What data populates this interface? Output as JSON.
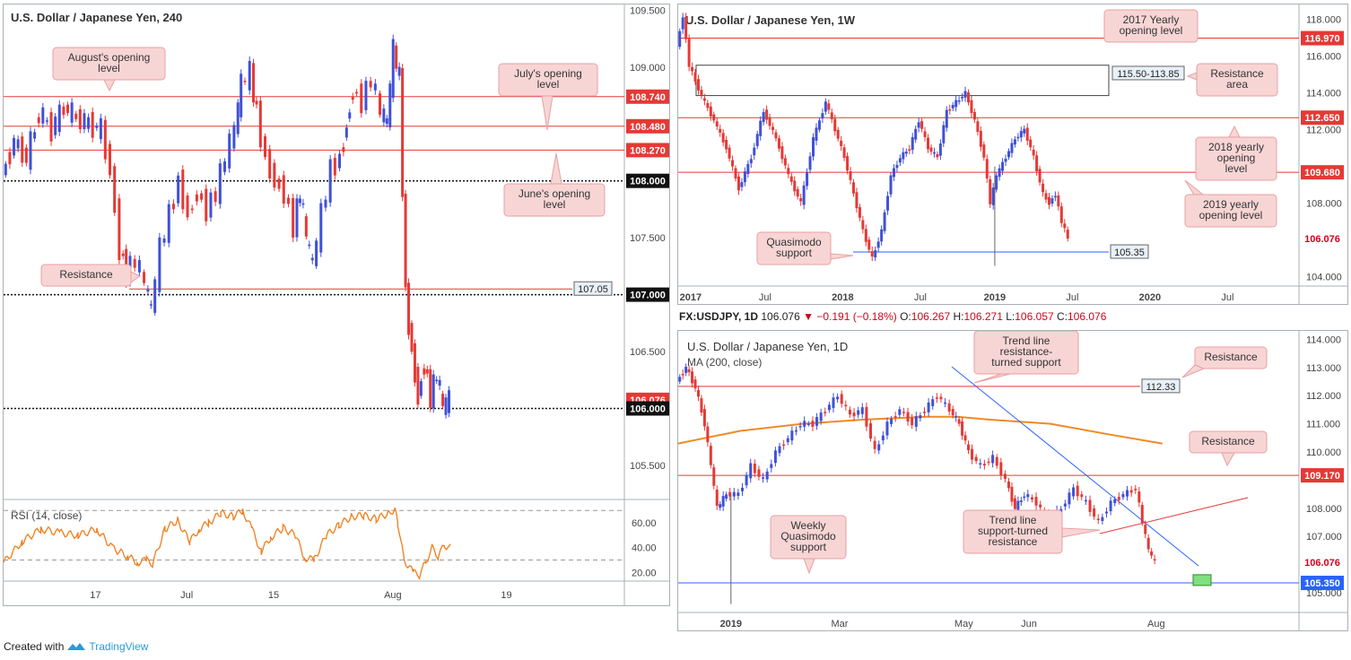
{
  "footer": {
    "created_with": "Created with",
    "brand": "TradingView"
  },
  "symbol_line": {
    "ticker": "FX:USDJPY, 1D",
    "last": "106.076",
    "change": "−0.191 (−0.18%)",
    "o_label": "O:",
    "o": "106.267",
    "h_label": "H:",
    "h": "106.271",
    "l_label": "L:",
    "l": "106.057",
    "c_label": "C:",
    "c": "106.076",
    "arrow": "▼"
  },
  "colors": {
    "resistance": "#e53935",
    "candle_up": "#3f51d6",
    "candle_down": "#e53935",
    "label_bg": "#f8d5d5",
    "label_border": "#e8a0a0",
    "blue_line": "#2962ff",
    "ma": "#f08a24",
    "rsi": "#f07d1a"
  },
  "chart_data": [
    {
      "type": "line",
      "title": "U.S. Dollar / Japanese Yen, 240",
      "ylim": [
        105.2,
        109.55
      ],
      "y_ticks": [
        "109.500",
        "109.000",
        "108.500",
        "108.000",
        "107.500",
        "107.000",
        "106.500",
        "106.000",
        "105.500"
      ],
      "y_tick_values": [
        109.5,
        109.0,
        108.5,
        108.0,
        107.5,
        107.0,
        106.5,
        106.0,
        105.5
      ],
      "x_ticks": [
        "17",
        "Jul",
        "15",
        "Aug",
        "19"
      ],
      "x_tick_frac": [
        0.148,
        0.295,
        0.435,
        0.627,
        0.81
      ],
      "price_tags": [
        {
          "value": 108.74,
          "label": "108.740",
          "style": "red"
        },
        {
          "value": 108.48,
          "label": "108.480",
          "style": "red"
        },
        {
          "value": 108.27,
          "label": "108.270",
          "style": "red"
        },
        {
          "value": 108.0,
          "label": "108.000",
          "style": "black"
        },
        {
          "value": 107.0,
          "label": "107.000",
          "style": "black"
        },
        {
          "value": 106.076,
          "label": "106.076",
          "style": "red"
        },
        {
          "value": 106.0,
          "label": "106.000",
          "style": "black"
        }
      ],
      "lines": [
        {
          "value": 108.74,
          "style": "red"
        },
        {
          "value": 108.48,
          "style": "red"
        },
        {
          "value": 108.27,
          "style": "red"
        },
        {
          "value": 108.0,
          "style": "dotted"
        },
        {
          "value": 107.0,
          "style": "dotted"
        },
        {
          "value": 106.0,
          "style": "dotted"
        },
        {
          "value": 107.05,
          "style": "red-short"
        }
      ],
      "boxed_value": "107.05",
      "annotations": [
        {
          "text": [
            "August's opening",
            "level"
          ]
        },
        {
          "text": [
            "July's opening",
            "level"
          ]
        },
        {
          "text": [
            "June's opening",
            "level"
          ]
        },
        {
          "text": [
            "Resistance"
          ]
        }
      ],
      "path": [
        [
          0,
          108.05
        ],
        [
          0.02,
          108.35
        ],
        [
          0.04,
          108.2
        ],
        [
          0.06,
          108.6
        ],
        [
          0.08,
          108.45
        ],
        [
          0.1,
          108.65
        ],
        [
          0.12,
          108.55
        ],
        [
          0.14,
          108.5
        ],
        [
          0.16,
          108.45
        ],
        [
          0.175,
          108.1
        ],
        [
          0.19,
          107.4
        ],
        [
          0.2,
          107.2
        ],
        [
          0.215,
          107.3
        ],
        [
          0.23,
          107.1
        ],
        [
          0.24,
          106.85
        ],
        [
          0.255,
          107.4
        ],
        [
          0.27,
          107.7
        ],
        [
          0.285,
          108.0
        ],
        [
          0.3,
          107.7
        ],
        [
          0.315,
          107.9
        ],
        [
          0.33,
          107.75
        ],
        [
          0.345,
          107.9
        ],
        [
          0.36,
          108.2
        ],
        [
          0.375,
          108.45
        ],
        [
          0.385,
          108.85
        ],
        [
          0.4,
          108.95
        ],
        [
          0.41,
          108.6
        ],
        [
          0.425,
          108.2
        ],
        [
          0.44,
          108.0
        ],
        [
          0.455,
          107.9
        ],
        [
          0.47,
          107.6
        ],
        [
          0.48,
          107.9
        ],
        [
          0.49,
          107.5
        ],
        [
          0.5,
          107.25
        ],
        [
          0.515,
          107.7
        ],
        [
          0.53,
          108.1
        ],
        [
          0.545,
          108.2
        ],
        [
          0.555,
          108.5
        ],
        [
          0.565,
          108.8
        ],
        [
          0.58,
          108.7
        ],
        [
          0.595,
          108.9
        ],
        [
          0.61,
          108.6
        ],
        [
          0.62,
          108.5
        ],
        [
          0.63,
          109.15
        ],
        [
          0.64,
          108.9
        ],
        [
          0.65,
          107.0
        ],
        [
          0.66,
          106.5
        ],
        [
          0.67,
          106.1
        ],
        [
          0.68,
          106.4
        ],
        [
          0.69,
          106.1
        ],
        [
          0.7,
          106.3
        ],
        [
          0.71,
          106.0
        ],
        [
          0.72,
          106.08
        ]
      ],
      "rsi": {
        "label": "RSI (14, close)",
        "ylim": [
          13,
          76
        ],
        "y_ticks": [
          "60.00",
          "40.00",
          "20.00"
        ],
        "y_tick_values": [
          60,
          40,
          20
        ],
        "bands": [
          70,
          30
        ],
        "path": [
          [
            0,
            28
          ],
          [
            0.03,
            45
          ],
          [
            0.06,
            55
          ],
          [
            0.09,
            52
          ],
          [
            0.12,
            50
          ],
          [
            0.15,
            55
          ],
          [
            0.175,
            40
          ],
          [
            0.2,
            33
          ],
          [
            0.215,
            28
          ],
          [
            0.23,
            30
          ],
          [
            0.24,
            27
          ],
          [
            0.26,
            55
          ],
          [
            0.28,
            62
          ],
          [
            0.3,
            45
          ],
          [
            0.315,
            55
          ],
          [
            0.33,
            60
          ],
          [
            0.35,
            68
          ],
          [
            0.37,
            65
          ],
          [
            0.385,
            70
          ],
          [
            0.4,
            55
          ],
          [
            0.415,
            37
          ],
          [
            0.43,
            48
          ],
          [
            0.45,
            56
          ],
          [
            0.47,
            50
          ],
          [
            0.485,
            32
          ],
          [
            0.5,
            30
          ],
          [
            0.52,
            50
          ],
          [
            0.54,
            58
          ],
          [
            0.56,
            65
          ],
          [
            0.58,
            66
          ],
          [
            0.6,
            63
          ],
          [
            0.62,
            68
          ],
          [
            0.63,
            71
          ],
          [
            0.635,
            60
          ],
          [
            0.645,
            30
          ],
          [
            0.66,
            20
          ],
          [
            0.67,
            18
          ],
          [
            0.68,
            28
          ],
          [
            0.69,
            40
          ],
          [
            0.7,
            33
          ],
          [
            0.71,
            42
          ],
          [
            0.72,
            40
          ]
        ]
      }
    },
    {
      "type": "line",
      "title": "U.S. Dollar / Japanese Yen, 1W",
      "ylim": [
        103.5,
        118.8
      ],
      "y_ticks": [
        "118.000",
        "116.000",
        "114.000",
        "112.000",
        "108.000",
        "104.000"
      ],
      "y_tick_values": [
        118,
        116,
        114,
        112,
        108,
        104
      ],
      "x_ticks": [
        "2017",
        "Jul",
        "2018",
        "Jul",
        "2019",
        "Jul",
        "2020",
        "Jul"
      ],
      "x_tick_frac": [
        0.02,
        0.14,
        0.265,
        0.39,
        0.51,
        0.635,
        0.76,
        0.885
      ],
      "price_tags": [
        {
          "value": 116.97,
          "label": "116.970",
          "style": "red"
        },
        {
          "value": 112.65,
          "label": "112.650",
          "style": "red"
        },
        {
          "value": 109.68,
          "label": "109.680",
          "style": "red"
        },
        {
          "value": 106.076,
          "label": "106.076",
          "style": "red-text"
        }
      ],
      "lines": [
        {
          "value": 116.97,
          "style": "red"
        },
        {
          "value": 112.65,
          "style": "red"
        },
        {
          "value": 109.68,
          "style": "red"
        },
        {
          "value": 105.35,
          "style": "blue-short"
        }
      ],
      "zone": {
        "top": 115.5,
        "bottom": 113.85,
        "label": "115.50-113.85"
      },
      "boxed_value": "105.35",
      "annotations": [
        {
          "text": [
            "2017 Yearly",
            "opening level"
          ]
        },
        {
          "text": [
            "Resistance",
            "area"
          ]
        },
        {
          "text": [
            "2018 yearly",
            "opening",
            "level"
          ]
        },
        {
          "text": [
            "2019 yearly",
            "opening level"
          ]
        },
        {
          "text": [
            "Quasimodo",
            "support"
          ]
        }
      ],
      "path": [
        [
          0,
          116.5
        ],
        [
          0.01,
          118.2
        ],
        [
          0.02,
          115.5
        ],
        [
          0.04,
          113.8
        ],
        [
          0.06,
          112.5
        ],
        [
          0.08,
          111.0
        ],
        [
          0.1,
          108.8
        ],
        [
          0.12,
          110.5
        ],
        [
          0.14,
          113.0
        ],
        [
          0.16,
          111.5
        ],
        [
          0.18,
          109.5
        ],
        [
          0.2,
          108.0
        ],
        [
          0.22,
          111.5
        ],
        [
          0.24,
          113.5
        ],
        [
          0.255,
          112.0
        ],
        [
          0.27,
          110.5
        ],
        [
          0.285,
          108.5
        ],
        [
          0.3,
          106.5
        ],
        [
          0.315,
          105.0
        ],
        [
          0.33,
          106.5
        ],
        [
          0.345,
          109.5
        ],
        [
          0.36,
          110.5
        ],
        [
          0.375,
          111.0
        ],
        [
          0.39,
          112.5
        ],
        [
          0.405,
          111.0
        ],
        [
          0.42,
          110.5
        ],
        [
          0.435,
          113.0
        ],
        [
          0.45,
          113.5
        ],
        [
          0.465,
          114.0
        ],
        [
          0.48,
          112.5
        ],
        [
          0.495,
          110.5
        ],
        [
          0.505,
          108.0
        ],
        [
          0.515,
          109.5
        ],
        [
          0.53,
          110.5
        ],
        [
          0.545,
          111.5
        ],
        [
          0.56,
          112.0
        ],
        [
          0.575,
          110.5
        ],
        [
          0.59,
          108.5
        ],
        [
          0.6,
          108.0
        ],
        [
          0.61,
          108.5
        ],
        [
          0.62,
          107.0
        ],
        [
          0.63,
          106.1
        ]
      ]
    },
    {
      "type": "line",
      "title": "U.S. Dollar / Japanese Yen, 1D",
      "ylim": [
        104.3,
        114.3
      ],
      "y_ticks": [
        "114.000",
        "113.000",
        "112.000",
        "111.000",
        "110.000",
        "108.000",
        "107.000",
        "105.000"
      ],
      "y_tick_values": [
        114,
        113,
        112,
        111,
        110,
        108,
        107,
        105
      ],
      "x_ticks": [
        "2019",
        "Mar",
        "May",
        "Jun",
        "Aug"
      ],
      "x_tick_frac": [
        0.085,
        0.26,
        0.46,
        0.565,
        0.77
      ],
      "price_tags": [
        {
          "value": 109.17,
          "label": "109.170",
          "style": "red"
        },
        {
          "value": 106.076,
          "label": "106.076",
          "style": "red-text"
        },
        {
          "value": 105.35,
          "label": "105.350",
          "style": "blue"
        }
      ],
      "lines": [
        {
          "value": 112.33,
          "style": "red-short"
        },
        {
          "value": 109.17,
          "style": "red"
        },
        {
          "value": 105.35,
          "style": "blue"
        }
      ],
      "boxed_value": "112.33",
      "ma_label": "MA (200, close)",
      "annotations": [
        {
          "text": [
            "Trend line",
            "resistance-",
            "turned support"
          ]
        },
        {
          "text": [
            "Resistance"
          ]
        },
        {
          "text": [
            "Resistance"
          ]
        },
        {
          "text": [
            "Trend line",
            "support-turned",
            "resistance"
          ]
        },
        {
          "text": [
            "Weekly",
            "Quasimodo",
            "support"
          ]
        }
      ],
      "path": [
        [
          0,
          112.5
        ],
        [
          0.015,
          113.0
        ],
        [
          0.03,
          112.3
        ],
        [
          0.045,
          111.0
        ],
        [
          0.055,
          109.5
        ],
        [
          0.065,
          108.0
        ],
        [
          0.08,
          108.5
        ],
        [
          0.1,
          108.5
        ],
        [
          0.12,
          109.5
        ],
        [
          0.14,
          109.0
        ],
        [
          0.16,
          110.0
        ],
        [
          0.18,
          110.5
        ],
        [
          0.2,
          111.0
        ],
        [
          0.22,
          111.0
        ],
        [
          0.24,
          111.5
        ],
        [
          0.26,
          112.0
        ],
        [
          0.28,
          111.3
        ],
        [
          0.3,
          111.5
        ],
        [
          0.32,
          110.0
        ],
        [
          0.34,
          111.0
        ],
        [
          0.36,
          111.5
        ],
        [
          0.38,
          111.0
        ],
        [
          0.4,
          111.5
        ],
        [
          0.42,
          112.0
        ],
        [
          0.44,
          111.5
        ],
        [
          0.455,
          111.0
        ],
        [
          0.47,
          110.0
        ],
        [
          0.49,
          109.5
        ],
        [
          0.51,
          109.8
        ],
        [
          0.53,
          109.0
        ],
        [
          0.545,
          108.0
        ],
        [
          0.56,
          108.5
        ],
        [
          0.58,
          108.2
        ],
        [
          0.6,
          107.5
        ],
        [
          0.62,
          108.0
        ],
        [
          0.64,
          108.7
        ],
        [
          0.66,
          108.2
        ],
        [
          0.68,
          107.5
        ],
        [
          0.7,
          108.2
        ],
        [
          0.72,
          108.5
        ],
        [
          0.74,
          108.7
        ],
        [
          0.75,
          107.5
        ],
        [
          0.76,
          106.5
        ],
        [
          0.77,
          106.08
        ]
      ],
      "ma_path": [
        [
          0,
          110.3
        ],
        [
          0.1,
          110.75
        ],
        [
          0.2,
          111.0
        ],
        [
          0.3,
          111.15
        ],
        [
          0.4,
          111.25
        ],
        [
          0.45,
          111.25
        ],
        [
          0.5,
          111.15
        ],
        [
          0.6,
          111.0
        ],
        [
          0.7,
          110.6
        ],
        [
          0.78,
          110.3
        ]
      ]
    }
  ]
}
